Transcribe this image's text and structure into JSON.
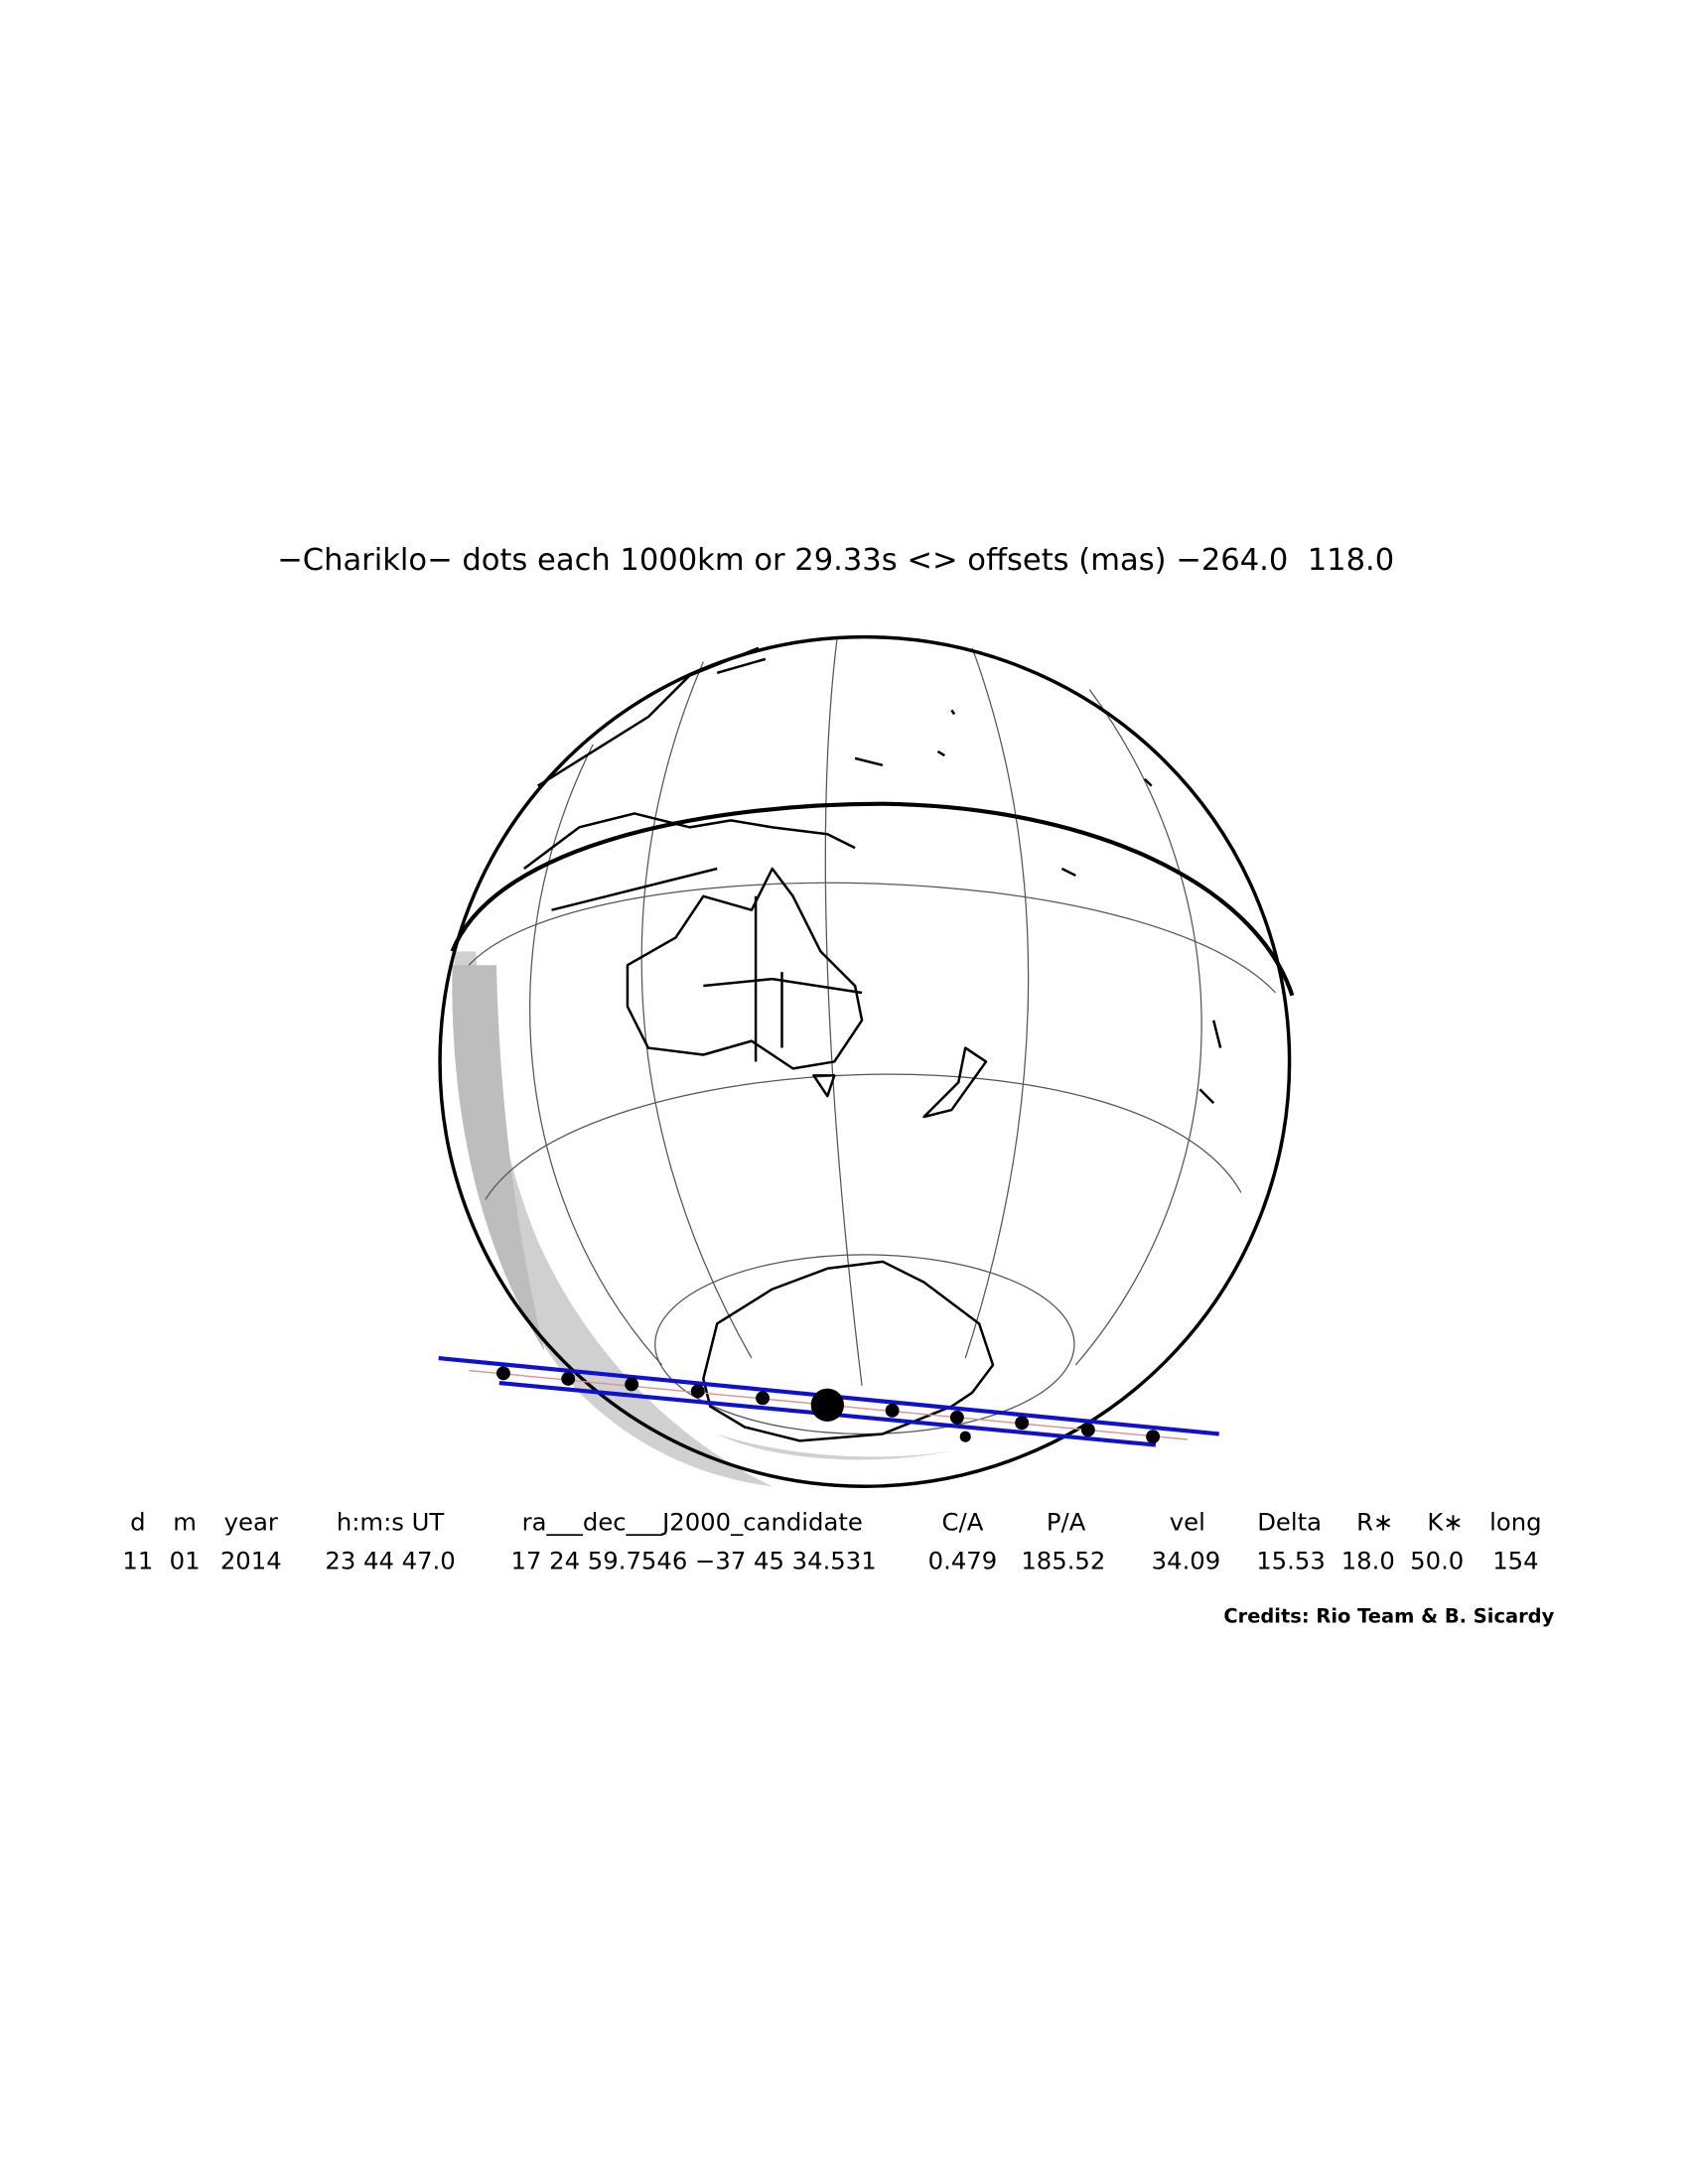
{
  "title": "−Chariklo− dots each 1000km or 29.33s <> offsets (mas) −264.0  118.0",
  "table": {
    "headers": [
      "d",
      "m",
      "year",
      "h:m:s UT",
      "ra___dec___J2000_candidate",
      "C/A",
      "P/A",
      "vel",
      "Delta",
      "R∗",
      "K∗",
      "long"
    ],
    "rows": [
      [
        "11",
        "01",
        "2014",
        "23 44 47.0",
        "17 24 59.7546 −37 45 34.531",
        "0.479",
        "185.52",
        "34.09",
        "15.53",
        "18.0",
        "50.0",
        "154"
      ]
    ]
  },
  "credits": "Credits: Rio Team & B. Sicardy"
}
